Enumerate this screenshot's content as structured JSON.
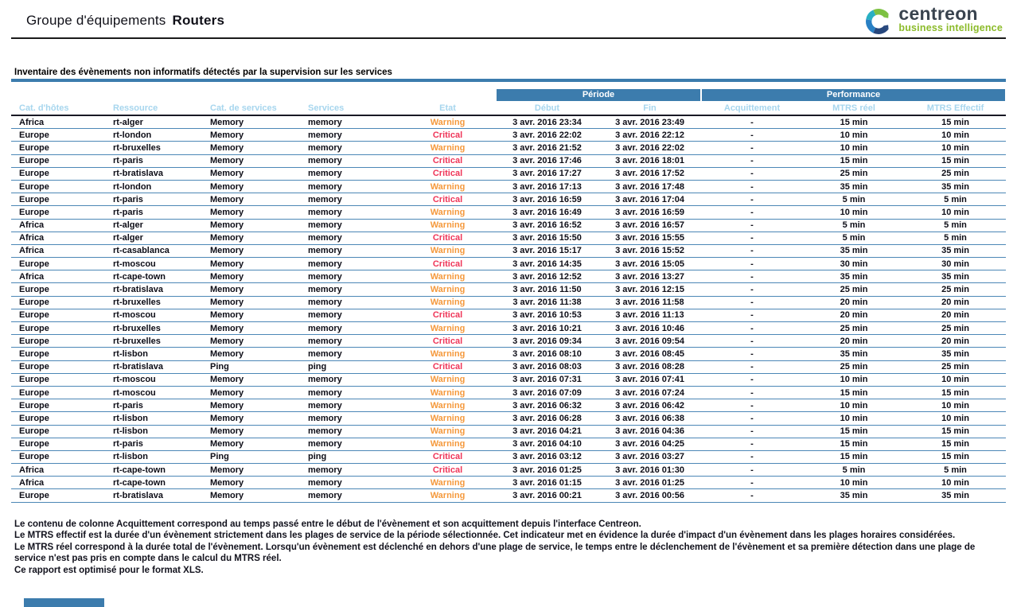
{
  "header": {
    "title_regular": "Groupe d'équipements",
    "title_bold": "Routers",
    "logo": {
      "brand": "centreon",
      "tagline": "business intelligence"
    }
  },
  "section": {
    "heading": "Inventaire des évènements non informatifs détectés par la supervision sur les services"
  },
  "table": {
    "group_headers": {
      "periode": "Période",
      "performance": "Performance"
    },
    "columns": [
      "Cat. d'hôtes",
      "Ressource",
      "Cat. de services",
      "Services",
      "Etat",
      "Début",
      "Fin",
      "Acquittement",
      "MTRS réel",
      "MTRS Effectif"
    ],
    "rows": [
      {
        "host_cat": "Africa",
        "resource": "rt-alger",
        "service_cat": "Memory",
        "service": "memory",
        "state": "Warning",
        "start": "3 avr. 2016 23:34",
        "end": "3 avr. 2016 23:49",
        "ack": "-",
        "mtrs_real": "15 min",
        "mtrs_effective": "15 min"
      },
      {
        "host_cat": "Europe",
        "resource": "rt-london",
        "service_cat": "Memory",
        "service": "memory",
        "state": "Critical",
        "start": "3 avr. 2016 22:02",
        "end": "3 avr. 2016 22:12",
        "ack": "-",
        "mtrs_real": "10 min",
        "mtrs_effective": "10 min"
      },
      {
        "host_cat": "Europe",
        "resource": "rt-bruxelles",
        "service_cat": "Memory",
        "service": "memory",
        "state": "Warning",
        "start": "3 avr. 2016 21:52",
        "end": "3 avr. 2016 22:02",
        "ack": "-",
        "mtrs_real": "10 min",
        "mtrs_effective": "10 min"
      },
      {
        "host_cat": "Europe",
        "resource": "rt-paris",
        "service_cat": "Memory",
        "service": "memory",
        "state": "Critical",
        "start": "3 avr. 2016 17:46",
        "end": "3 avr. 2016 18:01",
        "ack": "-",
        "mtrs_real": "15 min",
        "mtrs_effective": "15 min"
      },
      {
        "host_cat": "Europe",
        "resource": "rt-bratislava",
        "service_cat": "Memory",
        "service": "memory",
        "state": "Critical",
        "start": "3 avr. 2016 17:27",
        "end": "3 avr. 2016 17:52",
        "ack": "-",
        "mtrs_real": "25 min",
        "mtrs_effective": "25 min"
      },
      {
        "host_cat": "Europe",
        "resource": "rt-london",
        "service_cat": "Memory",
        "service": "memory",
        "state": "Warning",
        "start": "3 avr. 2016 17:13",
        "end": "3 avr. 2016 17:48",
        "ack": "-",
        "mtrs_real": "35 min",
        "mtrs_effective": "35 min"
      },
      {
        "host_cat": "Europe",
        "resource": "rt-paris",
        "service_cat": "Memory",
        "service": "memory",
        "state": "Critical",
        "start": "3 avr. 2016 16:59",
        "end": "3 avr. 2016 17:04",
        "ack": "-",
        "mtrs_real": "5 min",
        "mtrs_effective": "5 min"
      },
      {
        "host_cat": "Europe",
        "resource": "rt-paris",
        "service_cat": "Memory",
        "service": "memory",
        "state": "Warning",
        "start": "3 avr. 2016 16:49",
        "end": "3 avr. 2016 16:59",
        "ack": "-",
        "mtrs_real": "10 min",
        "mtrs_effective": "10 min"
      },
      {
        "host_cat": "Africa",
        "resource": "rt-alger",
        "service_cat": "Memory",
        "service": "memory",
        "state": "Warning",
        "start": "3 avr. 2016 16:52",
        "end": "3 avr. 2016 16:57",
        "ack": "-",
        "mtrs_real": "5 min",
        "mtrs_effective": "5 min"
      },
      {
        "host_cat": "Africa",
        "resource": "rt-alger",
        "service_cat": "Memory",
        "service": "memory",
        "state": "Critical",
        "start": "3 avr. 2016 15:50",
        "end": "3 avr. 2016 15:55",
        "ack": "-",
        "mtrs_real": "5 min",
        "mtrs_effective": "5 min"
      },
      {
        "host_cat": "Africa",
        "resource": "rt-casablanca",
        "service_cat": "Memory",
        "service": "memory",
        "state": "Warning",
        "start": "3 avr. 2016 15:17",
        "end": "3 avr. 2016 15:52",
        "ack": "-",
        "mtrs_real": "35 min",
        "mtrs_effective": "35 min"
      },
      {
        "host_cat": "Europe",
        "resource": "rt-moscou",
        "service_cat": "Memory",
        "service": "memory",
        "state": "Critical",
        "start": "3 avr. 2016 14:35",
        "end": "3 avr. 2016 15:05",
        "ack": "-",
        "mtrs_real": "30 min",
        "mtrs_effective": "30 min"
      },
      {
        "host_cat": "Africa",
        "resource": "rt-cape-town",
        "service_cat": "Memory",
        "service": "memory",
        "state": "Warning",
        "start": "3 avr. 2016 12:52",
        "end": "3 avr. 2016 13:27",
        "ack": "-",
        "mtrs_real": "35 min",
        "mtrs_effective": "35 min"
      },
      {
        "host_cat": "Europe",
        "resource": "rt-bratislava",
        "service_cat": "Memory",
        "service": "memory",
        "state": "Warning",
        "start": "3 avr. 2016 11:50",
        "end": "3 avr. 2016 12:15",
        "ack": "-",
        "mtrs_real": "25 min",
        "mtrs_effective": "25 min"
      },
      {
        "host_cat": "Europe",
        "resource": "rt-bruxelles",
        "service_cat": "Memory",
        "service": "memory",
        "state": "Warning",
        "start": "3 avr. 2016 11:38",
        "end": "3 avr. 2016 11:58",
        "ack": "-",
        "mtrs_real": "20 min",
        "mtrs_effective": "20 min"
      },
      {
        "host_cat": "Europe",
        "resource": "rt-moscou",
        "service_cat": "Memory",
        "service": "memory",
        "state": "Critical",
        "start": "3 avr. 2016 10:53",
        "end": "3 avr. 2016 11:13",
        "ack": "-",
        "mtrs_real": "20 min",
        "mtrs_effective": "20 min"
      },
      {
        "host_cat": "Europe",
        "resource": "rt-bruxelles",
        "service_cat": "Memory",
        "service": "memory",
        "state": "Warning",
        "start": "3 avr. 2016 10:21",
        "end": "3 avr. 2016 10:46",
        "ack": "-",
        "mtrs_real": "25 min",
        "mtrs_effective": "25 min"
      },
      {
        "host_cat": "Europe",
        "resource": "rt-bruxelles",
        "service_cat": "Memory",
        "service": "memory",
        "state": "Critical",
        "start": "3 avr. 2016 09:34",
        "end": "3 avr. 2016 09:54",
        "ack": "-",
        "mtrs_real": "20 min",
        "mtrs_effective": "20 min"
      },
      {
        "host_cat": "Europe",
        "resource": "rt-lisbon",
        "service_cat": "Memory",
        "service": "memory",
        "state": "Warning",
        "start": "3 avr. 2016 08:10",
        "end": "3 avr. 2016 08:45",
        "ack": "-",
        "mtrs_real": "35 min",
        "mtrs_effective": "35 min"
      },
      {
        "host_cat": "Europe",
        "resource": "rt-bratislava",
        "service_cat": "Ping",
        "service": "ping",
        "state": "Critical",
        "start": "3 avr. 2016 08:03",
        "end": "3 avr. 2016 08:28",
        "ack": "-",
        "mtrs_real": "25 min",
        "mtrs_effective": "25 min"
      },
      {
        "host_cat": "Europe",
        "resource": "rt-moscou",
        "service_cat": "Memory",
        "service": "memory",
        "state": "Warning",
        "start": "3 avr. 2016 07:31",
        "end": "3 avr. 2016 07:41",
        "ack": "-",
        "mtrs_real": "10 min",
        "mtrs_effective": "10 min"
      },
      {
        "host_cat": "Europe",
        "resource": "rt-moscou",
        "service_cat": "Memory",
        "service": "memory",
        "state": "Warning",
        "start": "3 avr. 2016 07:09",
        "end": "3 avr. 2016 07:24",
        "ack": "-",
        "mtrs_real": "15 min",
        "mtrs_effective": "15 min"
      },
      {
        "host_cat": "Europe",
        "resource": "rt-paris",
        "service_cat": "Memory",
        "service": "memory",
        "state": "Warning",
        "start": "3 avr. 2016 06:32",
        "end": "3 avr. 2016 06:42",
        "ack": "-",
        "mtrs_real": "10 min",
        "mtrs_effective": "10 min"
      },
      {
        "host_cat": "Europe",
        "resource": "rt-lisbon",
        "service_cat": "Memory",
        "service": "memory",
        "state": "Warning",
        "start": "3 avr. 2016 06:28",
        "end": "3 avr. 2016 06:38",
        "ack": "-",
        "mtrs_real": "10 min",
        "mtrs_effective": "10 min"
      },
      {
        "host_cat": "Europe",
        "resource": "rt-lisbon",
        "service_cat": "Memory",
        "service": "memory",
        "state": "Warning",
        "start": "3 avr. 2016 04:21",
        "end": "3 avr. 2016 04:36",
        "ack": "-",
        "mtrs_real": "15 min",
        "mtrs_effective": "15 min"
      },
      {
        "host_cat": "Europe",
        "resource": "rt-paris",
        "service_cat": "Memory",
        "service": "memory",
        "state": "Warning",
        "start": "3 avr. 2016 04:10",
        "end": "3 avr. 2016 04:25",
        "ack": "-",
        "mtrs_real": "15 min",
        "mtrs_effective": "15 min"
      },
      {
        "host_cat": "Europe",
        "resource": "rt-lisbon",
        "service_cat": "Ping",
        "service": "ping",
        "state": "Critical",
        "start": "3 avr. 2016 03:12",
        "end": "3 avr. 2016 03:27",
        "ack": "-",
        "mtrs_real": "15 min",
        "mtrs_effective": "15 min"
      },
      {
        "host_cat": "Africa",
        "resource": "rt-cape-town",
        "service_cat": "Memory",
        "service": "memory",
        "state": "Critical",
        "start": "3 avr. 2016 01:25",
        "end": "3 avr. 2016 01:30",
        "ack": "-",
        "mtrs_real": "5 min",
        "mtrs_effective": "5 min"
      },
      {
        "host_cat": "Africa",
        "resource": "rt-cape-town",
        "service_cat": "Memory",
        "service": "memory",
        "state": "Warning",
        "start": "3 avr. 2016 01:15",
        "end": "3 avr. 2016 01:25",
        "ack": "-",
        "mtrs_real": "10 min",
        "mtrs_effective": "10 min"
      },
      {
        "host_cat": "Europe",
        "resource": "rt-bratislava",
        "service_cat": "Memory",
        "service": "memory",
        "state": "Warning",
        "start": "3 avr. 2016 00:21",
        "end": "3 avr. 2016 00:56",
        "ack": "-",
        "mtrs_real": "35 min",
        "mtrs_effective": "35 min"
      }
    ]
  },
  "footer": {
    "notes": [
      "Le contenu de colonne Acquittement correspond au temps passé entre le début de l'évènement et son acquittement depuis l'interface Centreon.",
      "Le MTRS effectif est la durée d'un évènement strictement dans les plages de service de la période sélectionnée. Cet indicateur met en évidence la durée d'impact d'un évènement dans les plages horaires considérées.",
      "Le MTRS réel correspond à la durée total de l'évènement. Lorsqu'un évènement est déclenché en dehors d'une plage de service, le temps entre le déclenchement de l'évènement et sa première détection dans une plage de service n'est pas pris en compte dans le calcul du MTRS réel.",
      "Ce rapport est optimisé pour le format XLS."
    ]
  },
  "colors": {
    "accent": "#3C7CAD",
    "header_label": "#A7D6EE",
    "warning": "#F5993C",
    "critical": "#EF3558",
    "row_border": "#4C87B6",
    "logo_text": "#39434E",
    "logo_tagline": "#8CBB2A",
    "logo_c_green": "#7DC142",
    "logo_c_teal": "#29B0C3",
    "logo_c_blue": "#2980C4",
    "logo_c_navy": "#27477D"
  }
}
